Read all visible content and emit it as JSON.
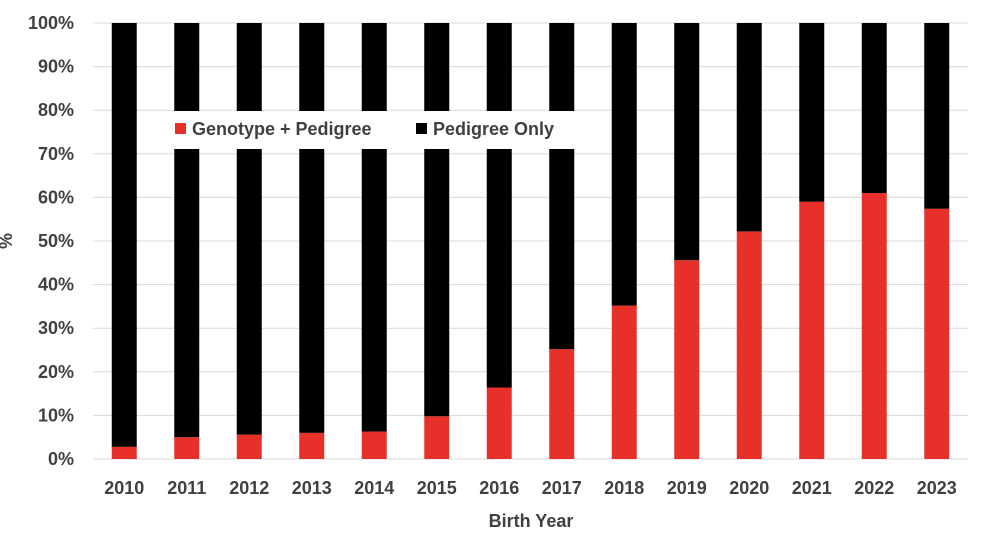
{
  "chart_data": {
    "type": "bar",
    "stacked": true,
    "percent_stacked": true,
    "categories": [
      "2010",
      "2011",
      "2012",
      "2013",
      "2014",
      "2015",
      "2016",
      "2017",
      "2018",
      "2019",
      "2020",
      "2021",
      "2022",
      "2023"
    ],
    "series": [
      {
        "name": "Genotype + Pedigree",
        "color": "#e8302a",
        "values": [
          2.8,
          5.0,
          5.6,
          6.0,
          6.3,
          9.8,
          16.4,
          25.2,
          35.2,
          45.6,
          52.2,
          59.0,
          61.0,
          57.4
        ]
      },
      {
        "name": "Pedigree Only",
        "color": "#000000",
        "values": [
          97.2,
          95.0,
          94.4,
          94.0,
          93.7,
          90.2,
          83.6,
          74.8,
          64.8,
          54.4,
          47.8,
          41.0,
          39.0,
          42.6
        ]
      }
    ],
    "xlabel": "Birth Year",
    "ylabel": "%",
    "ylim": [
      0,
      100
    ],
    "yticks": [
      "0%",
      "10%",
      "20%",
      "30%",
      "40%",
      "50%",
      "60%",
      "70%",
      "80%",
      "90%",
      "100%"
    ],
    "grid": true,
    "legend_position": "top-left, inside plot"
  }
}
